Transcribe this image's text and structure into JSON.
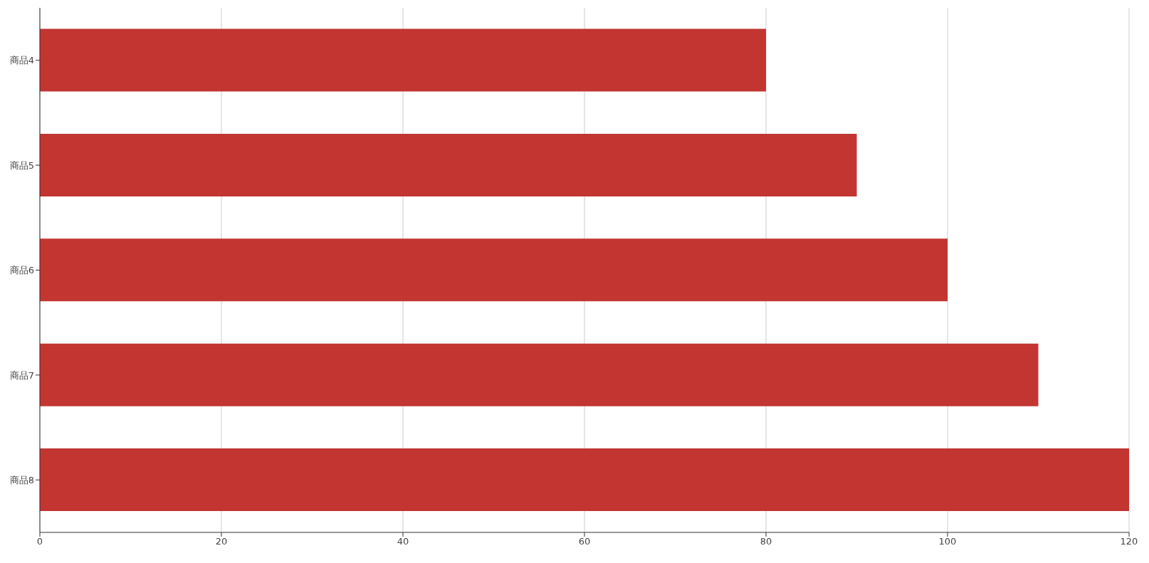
{
  "chart_data": {
    "type": "bar",
    "orientation": "horizontal",
    "categories": [
      "商品4",
      "商品5",
      "商品6",
      "商品7",
      "商品8"
    ],
    "values": [
      80,
      90,
      100,
      110,
      120
    ],
    "color": "#c23531",
    "xlim": [
      0,
      120
    ],
    "xticks": [
      0,
      20,
      40,
      60,
      80,
      100,
      120
    ],
    "grid": "x"
  }
}
